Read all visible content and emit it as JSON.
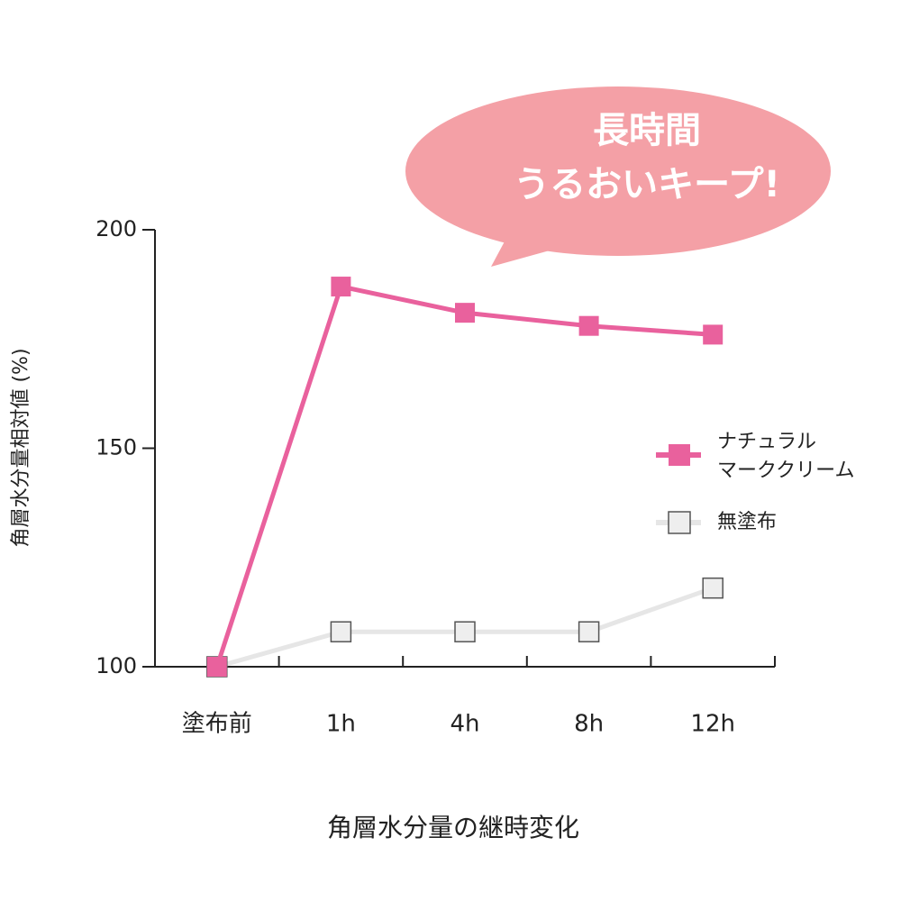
{
  "chart_data": {
    "type": "line",
    "annotations": [
      "長時間",
      "うるおいキープ!"
    ],
    "y_label": "角層水分量相対値 (%)",
    "x_label": "角層水分量の継時変化",
    "categories": [
      "塗布前",
      "1h",
      "4h",
      "8h",
      "12h"
    ],
    "series": [
      {
        "name": "ナチュラル\nマーククリーム",
        "color": "#e9619d",
        "values": [
          100,
          187,
          181,
          178,
          176
        ]
      },
      {
        "name": "無塗布",
        "color": "#e6e6e6",
        "values": [
          100,
          108,
          108,
          108,
          118
        ]
      }
    ],
    "ylim": [
      100,
      200
    ],
    "yticks": [
      100,
      150,
      200
    ]
  }
}
